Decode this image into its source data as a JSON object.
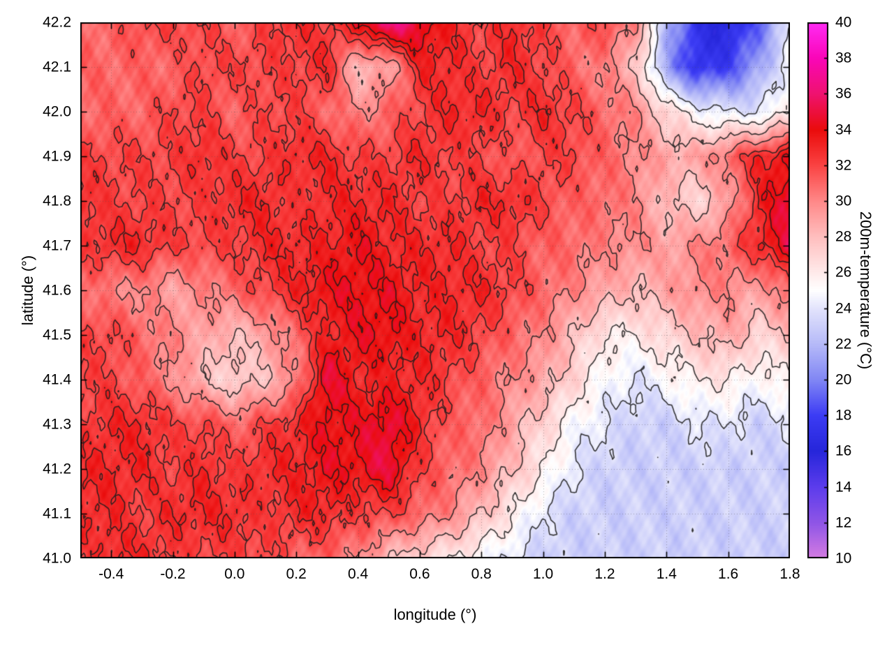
{
  "chart_data": {
    "type": "heatmap",
    "title": "",
    "xlabel": "longitude (°)",
    "ylabel": "latitude (°)",
    "colorbar_label": "200m-temperature (°C)",
    "xlim": [
      -0.5,
      1.8
    ],
    "ylim": [
      41.0,
      42.2
    ],
    "zlim": [
      10,
      40
    ],
    "grid_dotted": true,
    "xticks": {
      "values": [
        -0.4,
        -0.2,
        0.0,
        0.2,
        0.4,
        0.6,
        0.8,
        1.0,
        1.2,
        1.4,
        1.6,
        1.8
      ],
      "labels": [
        "-0.4",
        "-0.2",
        "0.0",
        "0.2",
        "0.4",
        "0.6",
        "0.8",
        "1.0",
        "1.2",
        "1.4",
        "1.6",
        "1.8"
      ]
    },
    "yticks": {
      "values": [
        41.0,
        41.1,
        41.2,
        41.3,
        41.4,
        41.5,
        41.6,
        41.7,
        41.8,
        41.9,
        42.0,
        42.1,
        42.2
      ],
      "labels": [
        "41.0",
        "41.1",
        "41.2",
        "41.3",
        "41.4",
        "41.5",
        "41.6",
        "41.7",
        "41.8",
        "41.9",
        "42.0",
        "42.1",
        "42.2"
      ]
    },
    "cbticks": {
      "values": [
        10,
        12,
        14,
        16,
        18,
        20,
        22,
        24,
        26,
        28,
        30,
        32,
        34,
        36,
        38,
        40
      ],
      "labels": [
        "10",
        "12",
        "14",
        "16",
        "18",
        "20",
        "22",
        "24",
        "26",
        "28",
        "30",
        "32",
        "34",
        "36",
        "38",
        "40"
      ]
    },
    "color_stops": [
      [
        10,
        "#d47ce2"
      ],
      [
        12,
        "#8f55e6"
      ],
      [
        14,
        "#5c3cec"
      ],
      [
        16,
        "#2626da"
      ],
      [
        18,
        "#3c3cf4"
      ],
      [
        20,
        "#8187f4"
      ],
      [
        22,
        "#b6baf8"
      ],
      [
        24,
        "#e3e4fc"
      ],
      [
        25,
        "#ffffff"
      ],
      [
        26,
        "#ffeaea"
      ],
      [
        28,
        "#ffbebe"
      ],
      [
        30,
        "#ff8888"
      ],
      [
        32,
        "#fa4242"
      ],
      [
        34,
        "#ea0c0c"
      ],
      [
        36,
        "#ef1270"
      ],
      [
        38,
        "#fa06b8"
      ],
      [
        40,
        "#ff2cf4"
      ]
    ],
    "contour_levels": [
      24,
      26,
      28,
      30,
      32,
      33,
      34
    ],
    "contour_color": "rgba(30,30,30,0.88)",
    "grid": {
      "lon_start": -0.5,
      "lon_step": 0.1,
      "lat_start": 42.2,
      "lat_step": -0.1,
      "ncols": 24,
      "nrows": 13,
      "values": [
        [
          31,
          31,
          32,
          32,
          32,
          31,
          32,
          33,
          32,
          34,
          37,
          35,
          33,
          32,
          33,
          32,
          31,
          32,
          30,
          22,
          17,
          16,
          19,
          24
        ],
        [
          31,
          31,
          31,
          31,
          32,
          32,
          32,
          32,
          33,
          28,
          29,
          33,
          33,
          32,
          33,
          32,
          31,
          30,
          28,
          21,
          17,
          18,
          21,
          25
        ],
        [
          31,
          31,
          31,
          32,
          32,
          31,
          32,
          32,
          31,
          30,
          31,
          32,
          33,
          33,
          32,
          33,
          32,
          31,
          30,
          27,
          25,
          24,
          24,
          26
        ],
        [
          32,
          32,
          32,
          32,
          33,
          32,
          32,
          33,
          33,
          32,
          32,
          33,
          32,
          32,
          31,
          32,
          32,
          31,
          30,
          29,
          29,
          31,
          33,
          34
        ],
        [
          33,
          32,
          32,
          32,
          32,
          33,
          33,
          32,
          33,
          33,
          33,
          32,
          32,
          33,
          33,
          32,
          31,
          31,
          30,
          28,
          27,
          29,
          33,
          35
        ],
        [
          32,
          33,
          33,
          32,
          32,
          32,
          33,
          33,
          33,
          34,
          33,
          33,
          33,
          32,
          32,
          31,
          31,
          30,
          30,
          29,
          30,
          31,
          33,
          35
        ],
        [
          31,
          30,
          30,
          29,
          30,
          31,
          32,
          33,
          34,
          34,
          34,
          33,
          33,
          33,
          32,
          31,
          30,
          29,
          28,
          29,
          30,
          30,
          29,
          31
        ],
        [
          32,
          32,
          31,
          30,
          29,
          28,
          29,
          31,
          33,
          34,
          34,
          33,
          33,
          32,
          31,
          30,
          28,
          26,
          26,
          27,
          28,
          29,
          27,
          28
        ],
        [
          32,
          32,
          31,
          30,
          28,
          27,
          28,
          30,
          35,
          33,
          33,
          33,
          32,
          31,
          30,
          29,
          27,
          25,
          24,
          25,
          26,
          26,
          25,
          26
        ],
        [
          32,
          33,
          33,
          32,
          32,
          31,
          32,
          33,
          34,
          34,
          35,
          33,
          31,
          31,
          29,
          27,
          25,
          24,
          23,
          23,
          24,
          24,
          23,
          24
        ],
        [
          33,
          33,
          33,
          32,
          33,
          32,
          33,
          33,
          34,
          34,
          35,
          32,
          31,
          30,
          28,
          26,
          24,
          23,
          23,
          23,
          23,
          23,
          23,
          23
        ],
        [
          33,
          33,
          32,
          33,
          33,
          33,
          32,
          33,
          33,
          32,
          32,
          31,
          30,
          28,
          26,
          24,
          23,
          23,
          23,
          23,
          23,
          23,
          23,
          23
        ],
        [
          32,
          33,
          33,
          32,
          32,
          32,
          32,
          31,
          31,
          30,
          28,
          27,
          26,
          25,
          24,
          23,
          23,
          23,
          23,
          23,
          23,
          23,
          23,
          23
        ]
      ]
    }
  }
}
